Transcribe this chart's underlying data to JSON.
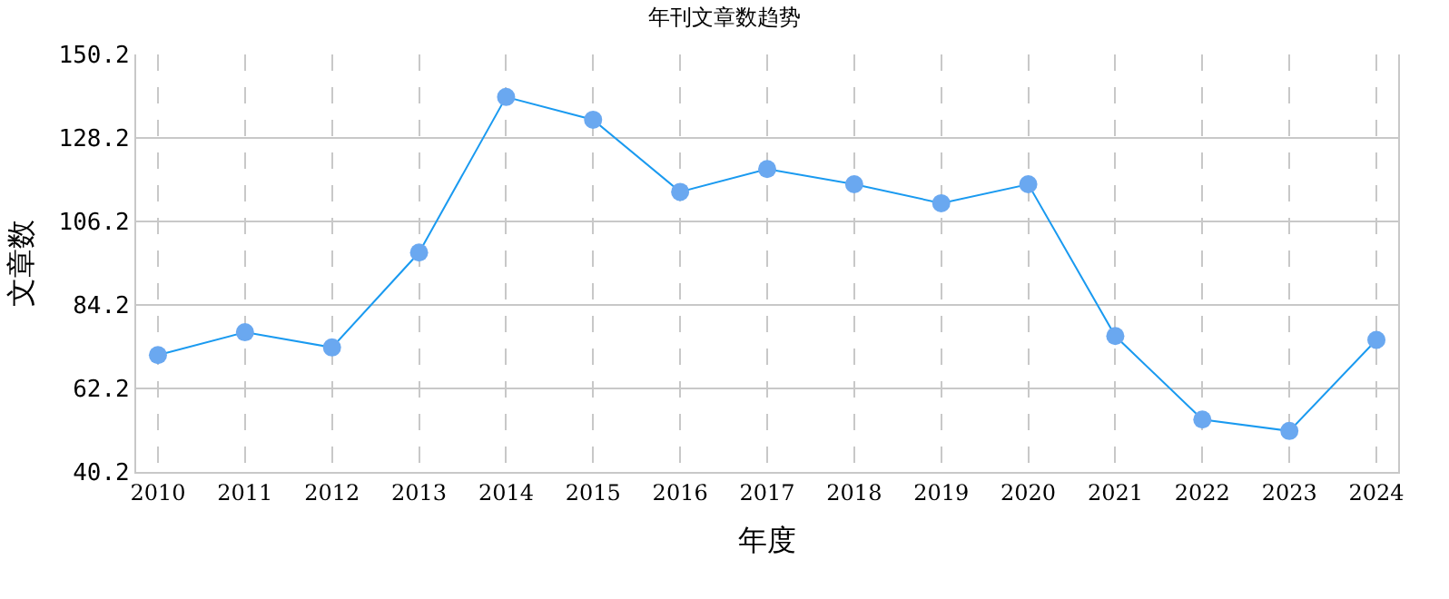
{
  "chart_data": {
    "type": "line",
    "title": "年刊文章数趋势",
    "xlabel": "年度",
    "ylabel": "文章数",
    "categories": [
      "2010",
      "2011",
      "2012",
      "2013",
      "2014",
      "2015",
      "2016",
      "2017",
      "2018",
      "2019",
      "2020",
      "2021",
      "2022",
      "2023",
      "2024"
    ],
    "series": [
      {
        "color": "#1a9af0",
        "values": [
          71,
          77,
          73,
          98,
          139,
          133,
          114,
          120,
          116,
          111,
          116,
          76,
          54,
          51,
          75
        ]
      }
    ],
    "ylim": [
      40.2,
      150.2
    ],
    "yticks": [
      {
        "value": 40.2,
        "label": "40.2"
      },
      {
        "value": 62.2,
        "label": "62.2"
      },
      {
        "value": 84.2,
        "label": "84.2"
      },
      {
        "value": 106.2,
        "label": "106.2"
      },
      {
        "value": 128.2,
        "label": "128.2"
      },
      {
        "value": 150.2,
        "label": "150.2"
      }
    ],
    "grid": true,
    "marker": "circle",
    "line_style": "solid"
  }
}
